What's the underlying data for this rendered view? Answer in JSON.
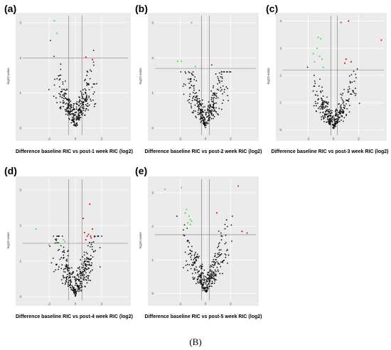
{
  "figure_label": "(B)",
  "colors": {
    "sig_down": "#55dd55",
    "sig_up": "#e02020",
    "ns": "#111111",
    "threshold_line": "#777777",
    "panel_bg": "#ebebeb"
  },
  "chart_data": [
    {
      "type": "scatter",
      "panel": "(a)",
      "xlabel": "Difference baseline RIC vs post-1 week RIC (log2)",
      "ylabel": "-log10 value",
      "xlim": [
        -4,
        4
      ],
      "ylim": [
        -0.2,
        3.2
      ],
      "x_ticks": [
        -2,
        0,
        2
      ],
      "y_ticks": [
        0,
        1,
        2,
        3
      ],
      "thresholds": {
        "fc": [
          -0.5,
          0.5
        ],
        "p": 2.0
      },
      "green_points": [
        [
          -1.6,
          3.05
        ],
        [
          -1.4,
          2.7
        ]
      ],
      "red_points": [
        [
          0.8,
          2.02
        ],
        [
          1.3,
          1.95
        ]
      ],
      "noise": {
        "count": 330,
        "seed": 11,
        "xspread": 2.2,
        "ymax": 2.5
      }
    },
    {
      "type": "scatter",
      "panel": "(b)",
      "xlabel": "Difference baseline RIC vs post-2 week RIC (log2)",
      "ylabel": "-log10 value",
      "xlim": [
        -4,
        4
      ],
      "ylim": [
        -0.2,
        3.2
      ],
      "x_ticks": [
        -2,
        0,
        2
      ],
      "y_ticks": [
        0,
        1,
        2,
        3
      ],
      "thresholds": {
        "fc": [
          -0.3,
          0.3
        ],
        "p": 1.7
      },
      "green_points": [
        [
          -1.1,
          3.0
        ],
        [
          -2.2,
          1.9
        ],
        [
          -1.9,
          1.9
        ],
        [
          -0.8,
          1.75
        ]
      ],
      "red_points": [
        [
          0.5,
          1.8
        ]
      ],
      "noise": {
        "count": 300,
        "seed": 23,
        "xspread": 2.3,
        "ymax": 1.6
      }
    },
    {
      "type": "scatter",
      "panel": "(c)",
      "xlabel": "Difference baseline RIC vs post-3 week RIC (log2)",
      "ylabel": "-log10 value",
      "xlim": [
        -4,
        4
      ],
      "ylim": [
        -0.2,
        4.2
      ],
      "x_ticks": [
        -2,
        0,
        2
      ],
      "y_ticks": [
        0,
        1,
        2,
        3,
        4
      ],
      "thresholds": {
        "fc": [
          -0.2,
          0.3
        ],
        "p": 2.2
      },
      "green_points": [
        [
          -1.2,
          3.4
        ],
        [
          -1.0,
          3.35
        ],
        [
          -1.3,
          3.0
        ],
        [
          -1.6,
          2.8
        ],
        [
          -1.1,
          2.7
        ],
        [
          -0.9,
          2.6
        ],
        [
          -1.5,
          2.5
        ],
        [
          -0.8,
          2.3
        ]
      ],
      "red_points": [
        [
          0.6,
          3.95
        ],
        [
          1.2,
          4.0
        ],
        [
          3.8,
          3.3
        ],
        [
          1.0,
          2.6
        ],
        [
          1.4,
          2.5
        ],
        [
          0.9,
          2.45
        ]
      ],
      "noise": {
        "count": 300,
        "seed": 37,
        "xspread": 2.4,
        "ymax": 2.3
      }
    },
    {
      "type": "scatter",
      "panel": "(d)",
      "xlabel": "Difference baseline RIC vs post-4 week RIC (log2)",
      "ylabel": "-log10 value",
      "xlim": [
        -4,
        4
      ],
      "ylim": [
        -0.1,
        3.3
      ],
      "x_ticks": [
        -2,
        0,
        2
      ],
      "y_ticks": [
        0,
        1,
        2,
        3
      ],
      "thresholds": {
        "fc": [
          -0.5,
          0.5
        ],
        "p": 1.5
      },
      "green_points": [
        [
          -3.0,
          1.9
        ],
        [
          -0.9,
          1.6
        ],
        [
          -0.8,
          1.55
        ],
        [
          -2.0,
          1.45
        ]
      ],
      "red_points": [
        [
          1.1,
          2.6
        ],
        [
          0.6,
          2.2
        ],
        [
          1.3,
          1.9
        ],
        [
          0.7,
          1.8
        ],
        [
          1.0,
          1.75
        ],
        [
          0.9,
          1.7
        ],
        [
          1.2,
          1.65
        ],
        [
          0.8,
          1.6
        ]
      ],
      "noise": {
        "count": 330,
        "seed": 41,
        "xspread": 2.3,
        "ymax": 1.7
      }
    },
    {
      "type": "scatter",
      "panel": "(e)",
      "xlabel": "Difference baseline RIC vs post-5 week RIC (log2)",
      "ylabel": "-log10 value",
      "xlim": [
        -4,
        4
      ],
      "ylim": [
        -0.2,
        3.4
      ],
      "x_ticks": [
        -2,
        0,
        2
      ],
      "y_ticks": [
        0,
        1,
        2,
        3
      ],
      "thresholds": {
        "fc": [
          -0.3,
          0.3
        ],
        "p": 1.75
      },
      "green_points": [
        [
          -3.2,
          3.1
        ],
        [
          -1.9,
          3.15
        ],
        [
          -1.5,
          2.5
        ],
        [
          -1.3,
          2.3
        ],
        [
          -1.2,
          2.2
        ],
        [
          -1.1,
          2.15
        ],
        [
          -1.4,
          2.1
        ],
        [
          -1.2,
          2.05
        ],
        [
          -1.6,
          2.4
        ]
      ],
      "red_points": [
        [
          2.6,
          3.2
        ],
        [
          0.9,
          2.4
        ],
        [
          2.9,
          1.85
        ],
        [
          3.3,
          1.8
        ]
      ],
      "noise": {
        "count": 320,
        "seed": 53,
        "xspread": 2.5,
        "ymax": 2.3
      }
    }
  ]
}
